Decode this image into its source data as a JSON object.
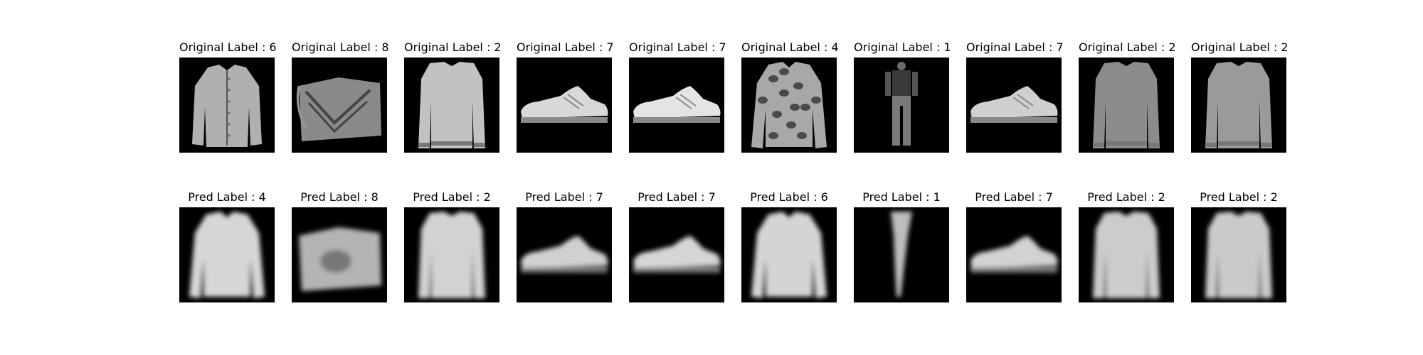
{
  "figure": {
    "rows": [
      {
        "name": "original",
        "items": [
          {
            "title": "Original Label : 6",
            "icon": "shirt-icon",
            "shade": "#b0b0b0",
            "blur": false
          },
          {
            "title": "Original Label : 8",
            "icon": "bag-icon",
            "shade": "#8a8a8a",
            "blur": false
          },
          {
            "title": "Original Label : 2",
            "icon": "pullover-icon",
            "shade": "#c2c2c2",
            "blur": false
          },
          {
            "title": "Original Label : 7",
            "icon": "sneaker-icon",
            "shade": "#d8d8d8",
            "blur": false
          },
          {
            "title": "Original Label : 7",
            "icon": "sneaker-icon",
            "shade": "#e4e4e4",
            "blur": false
          },
          {
            "title": "Original Label : 4",
            "icon": "coat-icon",
            "shade": "#a8a8a8",
            "blur": false
          },
          {
            "title": "Original Label : 1",
            "icon": "trouser-icon",
            "shade": "#7a7a7a",
            "blur": false
          },
          {
            "title": "Original Label : 7",
            "icon": "sneaker-icon",
            "shade": "#cfcfcf",
            "blur": false
          },
          {
            "title": "Original Label : 2",
            "icon": "pullover-icon",
            "shade": "#8c8c8c",
            "blur": false
          },
          {
            "title": "Original Label : 2",
            "icon": "pullover-icon",
            "shade": "#9a9a9a",
            "blur": false
          }
        ]
      },
      {
        "name": "pred",
        "items": [
          {
            "title": "Pred Label : 4",
            "icon": "coat-icon",
            "shade": "#d6d6d6",
            "blur": true
          },
          {
            "title": "Pred Label : 8",
            "icon": "bag-icon",
            "shade": "#b4b4b4",
            "blur": true
          },
          {
            "title": "Pred Label : 2",
            "icon": "pullover-icon",
            "shade": "#d2d2d2",
            "blur": true
          },
          {
            "title": "Pred Label : 7",
            "icon": "sneaker-icon",
            "shade": "#d0d0d0",
            "blur": true
          },
          {
            "title": "Pred Label : 7",
            "icon": "sneaker-icon",
            "shade": "#d6d6d6",
            "blur": true
          },
          {
            "title": "Pred Label : 6",
            "icon": "coat-icon",
            "shade": "#d4d4d4",
            "blur": true
          },
          {
            "title": "Pred Label : 1",
            "icon": "trouser-icon",
            "shade": "#bdbdbd",
            "blur": true
          },
          {
            "title": "Pred Label : 7",
            "icon": "sneaker-icon",
            "shade": "#d2d2d2",
            "blur": true
          },
          {
            "title": "Pred Label : 2",
            "icon": "pullover-icon",
            "shade": "#cccccc",
            "blur": true
          },
          {
            "title": "Pred Label : 2",
            "icon": "pullover-icon",
            "shade": "#cacaca",
            "blur": true
          }
        ]
      }
    ]
  }
}
